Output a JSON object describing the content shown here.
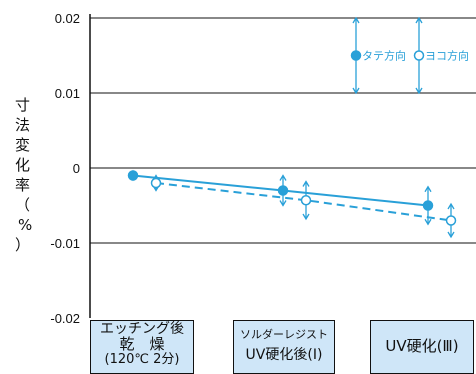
{
  "chart_data": {
    "type": "line",
    "ylabel": "寸法変化率（%）",
    "ylim": [
      -0.02,
      0.02
    ],
    "yticks": [
      {
        "value": 0.02,
        "label": "0.02"
      },
      {
        "value": 0.01,
        "label": "0.01"
      },
      {
        "value": 0,
        "label": "0"
      },
      {
        "value": -0.01,
        "label": "-0.01"
      },
      {
        "value": -0.02,
        "label": "-0.02"
      }
    ],
    "categories": [
      [
        "エッチング後",
        "乾　燥",
        "(120℃ 2分)"
      ],
      [
        "ソルダーレジスト",
        "UV硬化後(Ⅰ)"
      ],
      [
        "UV硬化(Ⅲ)"
      ]
    ],
    "series": [
      {
        "name": "タテ方向",
        "marker": "filled",
        "style": "solid",
        "color": "#29a0d8",
        "values": [
          -0.001,
          -0.003,
          -0.005
        ],
        "errors": [
          0.0006,
          0.002,
          0.0025
        ]
      },
      {
        "name": "ヨコ方向",
        "marker": "open",
        "style": "dashed",
        "color": "#29a0d8",
        "values": [
          -0.002,
          -0.0043,
          -0.007
        ],
        "errors": [
          0.001,
          0.0025,
          0.0022
        ]
      }
    ],
    "legend": {
      "position": "top-right",
      "error_bar": 0.01
    },
    "grid": true
  }
}
